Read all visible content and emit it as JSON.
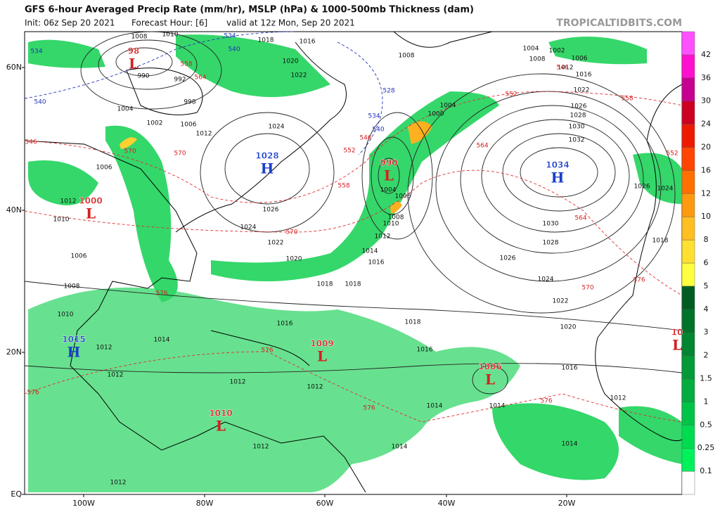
{
  "header": {
    "title": "GFS 6-hour Averaged Precip Rate (mm/hr), MSLP (hPa) & 1000-500mb Thickness (dam)",
    "init": "Init: 06z Sep 20 2021",
    "forecast": "Forecast Hour: [6]",
    "valid": "valid at 12z Mon, Sep 20 2021",
    "credit": "TROPICALTIDBITS.COM"
  },
  "axes": {
    "latitudes": [
      "60N",
      "40N",
      "20N",
      "EQ"
    ],
    "longitudes": [
      "100W",
      "80W",
      "60W",
      "40W",
      "20W"
    ]
  },
  "colorbar": {
    "ticks": [
      0.1,
      0.25,
      0.5,
      1,
      1.5,
      2,
      3,
      4,
      5,
      6,
      8,
      10,
      12,
      16,
      20,
      24,
      30,
      36,
      42
    ],
    "colors": [
      "#ffffff",
      "#00f25a",
      "#00dc50",
      "#00c447",
      "#00ad3e",
      "#009a37",
      "#008630",
      "#00722a",
      "#005c22",
      "#ffff40",
      "#ffe030",
      "#ffbf20",
      "#ff9a10",
      "#ff7000",
      "#ff4500",
      "#ee1a00",
      "#cc0022",
      "#c80090",
      "#ff10d0",
      "#ff50ff"
    ]
  },
  "pressure_centers": [
    {
      "letter": "H",
      "value": "1028"
    },
    {
      "letter": "H",
      "value": "1034"
    },
    {
      "letter": "L",
      "value": "990"
    },
    {
      "letter": "L",
      "value": "1000"
    },
    {
      "letter": "H",
      "value": "1015"
    },
    {
      "letter": "L",
      "value": "1006"
    },
    {
      "letter": "L",
      "value": "1010"
    },
    {
      "letter": "L",
      "value": "1009"
    },
    {
      "letter": "L",
      "value": "98"
    },
    {
      "letter": "L",
      "value": "10"
    }
  ],
  "isobar_labels": [
    "1008",
    "1010",
    "1018",
    "1016",
    "1020",
    "1022",
    "1008",
    "1004",
    "1002",
    "1006",
    "1008",
    "1012",
    "1016",
    "1022",
    "1026",
    "1028",
    "1030",
    "1032",
    "990",
    "992",
    "998",
    "1004",
    "1002",
    "1006",
    "1012",
    "1024",
    "1026",
    "1024",
    "1022",
    "1020",
    "1018",
    "1018",
    "1014",
    "1016",
    "1012",
    "1010",
    "1008",
    "1006",
    "1004",
    "1000",
    "1004",
    "1030",
    "1028",
    "1026",
    "1024",
    "1022",
    "1020",
    "1018",
    "1016",
    "1014",
    "1012",
    "1012",
    "1012",
    "1012",
    "1016",
    "1016",
    "1014",
    "1014",
    "1014",
    "1014",
    "1012",
    "1012",
    "1012",
    "1008",
    "1006",
    "1010",
    "1010",
    "1012",
    "1026",
    "1024",
    "1018",
    "1006"
  ],
  "thickness_labels_red": [
    "546",
    "552",
    "558",
    "564",
    "564",
    "570",
    "570",
    "570",
    "570",
    "576",
    "576",
    "576",
    "576",
    "576",
    "576",
    "552",
    "558",
    "546",
    "564",
    "558",
    "552",
    "546"
  ],
  "thickness_labels_blue": [
    "534",
    "540",
    "534",
    "540",
    "528",
    "540",
    "534"
  ]
}
